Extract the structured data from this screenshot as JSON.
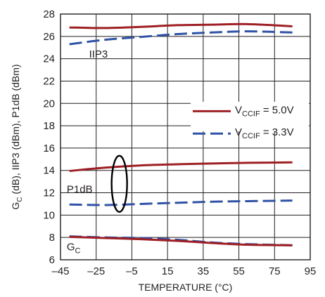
{
  "chart_data": {
    "type": "line",
    "title": "",
    "xlabel": "TEMPERATURE (°C)",
    "ylabel_parts": {
      "g": "G",
      "sub": "C",
      "rest": " (dB), IIP3 (dBm), P1dB (dBm)"
    },
    "xlim": [
      -45,
      95
    ],
    "ylim": [
      6,
      28
    ],
    "xticks": [
      "–45",
      "–25",
      "–5",
      "15",
      "35",
      "55",
      "75",
      "95"
    ],
    "yticks": [
      "6",
      "8",
      "10",
      "12",
      "14",
      "16",
      "18",
      "20",
      "22",
      "24",
      "26",
      "28"
    ],
    "grid": true,
    "legend_placement": "right",
    "legend": [
      {
        "prefix": "V",
        "sub": "CCIF",
        "suffix": " = 5.0V",
        "style": "solid"
      },
      {
        "prefix": "V",
        "sub": "CCIF",
        "suffix": " = 3.3V",
        "style": "dashed"
      }
    ],
    "annotations": {
      "iip3": "IIP3",
      "p1db": "P1dB",
      "gc": {
        "g": "G",
        "sub": "C"
      }
    },
    "colors": {
      "solid": "#9e1f24",
      "dashed": "#3052a6",
      "grid": "#231f20"
    },
    "series": [
      {
        "key": "iip3_5v",
        "style": "solid",
        "x": [
          -40,
          -20,
          0,
          20,
          40,
          60,
          85
        ],
        "y": [
          26.8,
          26.75,
          26.85,
          27.0,
          27.05,
          27.1,
          26.9
        ]
      },
      {
        "key": "iip3_3v",
        "style": "dashed",
        "x": [
          -40,
          -20,
          0,
          20,
          40,
          60,
          85
        ],
        "y": [
          25.3,
          25.7,
          25.95,
          26.2,
          26.35,
          26.45,
          26.35
        ]
      },
      {
        "key": "p1db_5v",
        "style": "solid",
        "x": [
          -40,
          -20,
          0,
          20,
          40,
          60,
          85
        ],
        "y": [
          13.95,
          14.25,
          14.45,
          14.55,
          14.62,
          14.68,
          14.72
        ]
      },
      {
        "key": "p1db_3v",
        "style": "dashed",
        "x": [
          -40,
          -20,
          0,
          20,
          40,
          60,
          85
        ],
        "y": [
          10.95,
          10.9,
          11.0,
          11.1,
          11.2,
          11.25,
          11.3
        ]
      },
      {
        "key": "gc_5v",
        "style": "solid",
        "x": [
          -40,
          -20,
          0,
          20,
          40,
          60,
          85
        ],
        "y": [
          8.05,
          7.95,
          7.85,
          7.7,
          7.5,
          7.35,
          7.3
        ]
      },
      {
        "key": "gc_3v",
        "style": "dashed",
        "x": [
          -40,
          -20,
          0,
          20,
          40,
          60,
          85
        ],
        "y": [
          8.1,
          8.0,
          7.95,
          7.8,
          7.55,
          7.4,
          7.3
        ]
      }
    ]
  }
}
